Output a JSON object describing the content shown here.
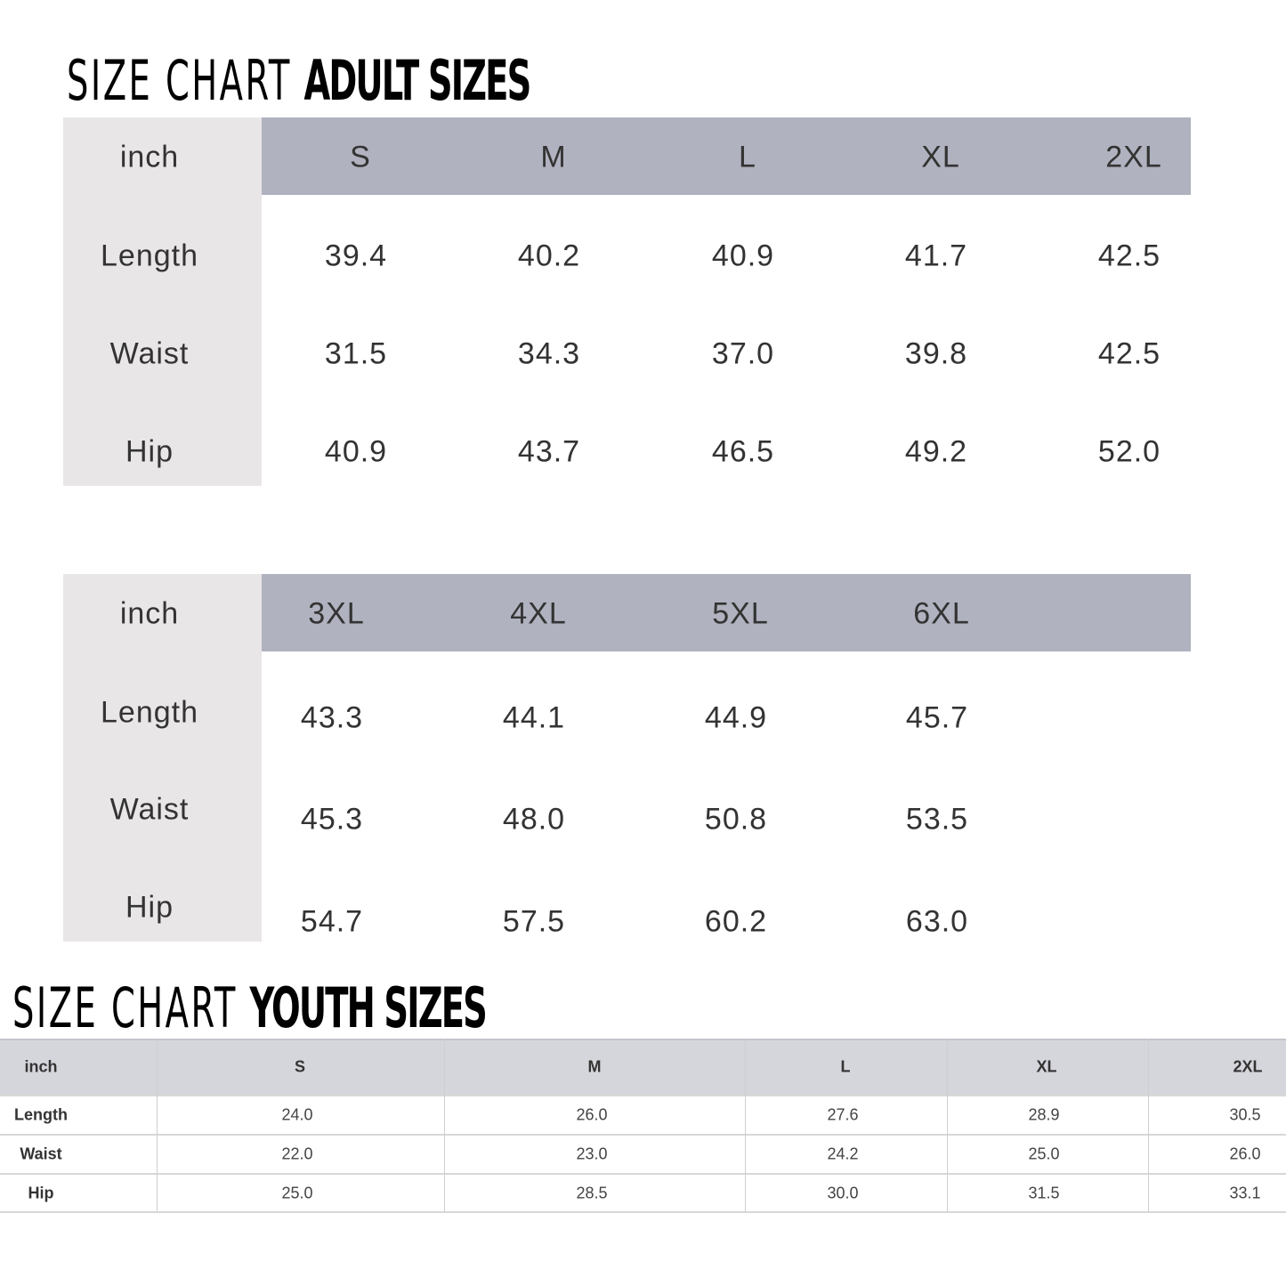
{
  "adult": {
    "title": "SIZE CHART",
    "subtitle": "ADULT SIZES",
    "tables": [
      {
        "header": [
          "inch",
          "S",
          "M",
          "L",
          "XL",
          "2XL"
        ],
        "rows": [
          [
            "Length",
            "39.4",
            "40.2",
            "40.9",
            "41.7",
            "42.5"
          ],
          [
            "Waist",
            "31.5",
            "34.3",
            "37.0",
            "39.8",
            "42.5"
          ],
          [
            "Hip",
            "40.9",
            "43.7",
            "46.5",
            "49.2",
            "52.0"
          ]
        ]
      },
      {
        "header": [
          "inch",
          "3XL",
          "4XL",
          "5XL",
          "6XL"
        ],
        "rows": [
          [
            "Length",
            "43.3",
            "44.1",
            "44.9",
            "45.7"
          ],
          [
            "Waist",
            "45.3",
            "48.0",
            "50.8",
            "53.5"
          ],
          [
            "Hip",
            "54.7",
            "57.5",
            "60.2",
            "63.0"
          ]
        ]
      }
    ]
  },
  "youth": {
    "title": "SIZE CHART",
    "subtitle": "YOUTH SIZES",
    "table": {
      "header": [
        "inch",
        "S",
        "M",
        "L",
        "XL",
        "2XL"
      ],
      "rows": [
        [
          "Length",
          "24.0",
          "26.0",
          "27.6",
          "28.9",
          "30.5"
        ],
        [
          "Waist",
          "22.0",
          "23.0",
          "24.2",
          "25.0",
          "26.0"
        ],
        [
          "Hip",
          "25.0",
          "28.5",
          "30.0",
          "31.5",
          "33.1"
        ]
      ]
    }
  }
}
